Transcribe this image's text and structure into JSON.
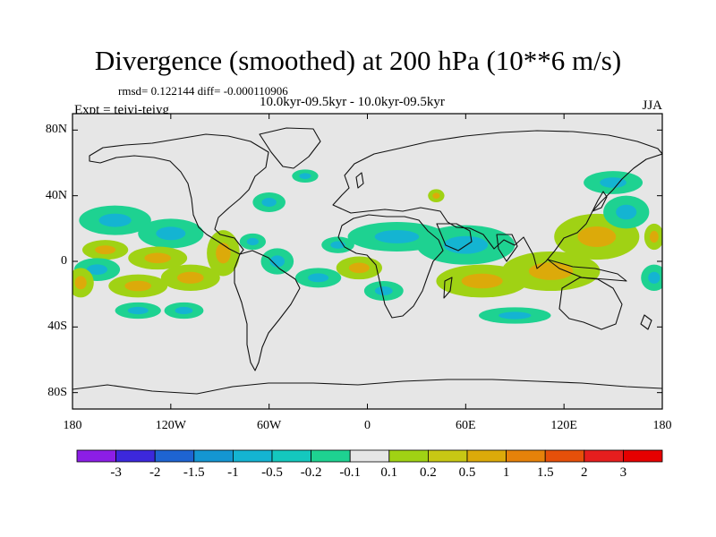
{
  "title": "Divergence (smoothed) at 200 hPa (10**6 m/s)",
  "stats": "rmsd= 0.122144 diff= -0.000110906",
  "subtitle": "10.0kyr-09.5kyr - 10.0kyr-09.5kyr",
  "expt": "Expt = tejyi-tejyg",
  "season": "JJA",
  "map": {
    "lon_range": [
      -180,
      180
    ],
    "lat_range": [
      -90,
      90
    ],
    "background_color": "#e6e6e6",
    "lat_labels": [
      {
        "text": "80N",
        "lat": 80
      },
      {
        "text": "40N",
        "lat": 40
      },
      {
        "text": "0",
        "lat": 0
      },
      {
        "text": "40S",
        "lat": -40
      },
      {
        "text": "80S",
        "lat": -80
      }
    ],
    "lon_labels": [
      {
        "text": "180",
        "lon": -180
      },
      {
        "text": "120W",
        "lon": -120
      },
      {
        "text": "60W",
        "lon": -60
      },
      {
        "text": "0",
        "lon": 0
      },
      {
        "text": "60E",
        "lon": 60
      },
      {
        "text": "120E",
        "lon": 120
      },
      {
        "text": "180",
        "lon": 180
      }
    ]
  },
  "colorbar": {
    "colors": [
      "#8c1ee6",
      "#3c28dc",
      "#1e64d2",
      "#1496d2",
      "#14b4d2",
      "#14c8be",
      "#1ed291",
      "#e6e6e6",
      "#a0d214",
      "#c8c814",
      "#dcaa0a",
      "#e6820a",
      "#e6500a",
      "#e61e1e",
      "#e60000"
    ],
    "labels": [
      "-3",
      "-2",
      "-1.5",
      "-1",
      "-0.5",
      "-0.2",
      "-0.1",
      "0.1",
      "0.2",
      "0.5",
      "1",
      "1.5",
      "2",
      "3"
    ]
  },
  "anomalies": [
    {
      "lon": -154,
      "lat": 25,
      "rlon": 22,
      "rlat": 9,
      "level": "neg"
    },
    {
      "lon": -120,
      "lat": 17,
      "rlon": 20,
      "rlat": 9,
      "level": "neg"
    },
    {
      "lon": -160,
      "lat": 7,
      "rlon": 14,
      "rlat": 6,
      "level": "pos"
    },
    {
      "lon": -128,
      "lat": 2,
      "rlon": 18,
      "rlat": 7,
      "level": "pos"
    },
    {
      "lon": -165,
      "lat": -5,
      "rlon": 14,
      "rlat": 7,
      "level": "neg"
    },
    {
      "lon": -108,
      "lat": -10,
      "rlon": 18,
      "rlat": 8,
      "level": "pos"
    },
    {
      "lon": -140,
      "lat": -15,
      "rlon": 18,
      "rlat": 7,
      "level": "pos"
    },
    {
      "lon": -175,
      "lat": -13,
      "rlon": 8,
      "rlat": 9,
      "level": "pos"
    },
    {
      "lon": -88,
      "lat": 5,
      "rlon": 10,
      "rlat": 14,
      "level": "pos"
    },
    {
      "lon": -70,
      "lat": 12,
      "rlon": 8,
      "rlat": 5,
      "level": "neg"
    },
    {
      "lon": -55,
      "lat": 0,
      "rlon": 10,
      "rlat": 8,
      "level": "neg"
    },
    {
      "lon": -140,
      "lat": -30,
      "rlon": 14,
      "rlat": 5,
      "level": "neg"
    },
    {
      "lon": -112,
      "lat": -30,
      "rlon": 12,
      "rlat": 5,
      "level": "neg"
    },
    {
      "lon": -60,
      "lat": 36,
      "rlon": 10,
      "rlat": 6,
      "level": "neg"
    },
    {
      "lon": -38,
      "lat": 52,
      "rlon": 8,
      "rlat": 4,
      "level": "neg"
    },
    {
      "lon": -18,
      "lat": 10,
      "rlon": 10,
      "rlat": 5,
      "level": "neg"
    },
    {
      "lon": -30,
      "lat": -10,
      "rlon": 14,
      "rlat": 6,
      "level": "neg"
    },
    {
      "lon": -5,
      "lat": -4,
      "rlon": 14,
      "rlat": 7,
      "level": "pos"
    },
    {
      "lon": 18,
      "lat": 15,
      "rlon": 30,
      "rlat": 9,
      "level": "neg"
    },
    {
      "lon": 10,
      "lat": -18,
      "rlon": 12,
      "rlat": 6,
      "level": "neg"
    },
    {
      "lon": 42,
      "lat": 40,
      "rlon": 5,
      "rlat": 4,
      "level": "pos"
    },
    {
      "lon": 60,
      "lat": 10,
      "rlon": 30,
      "rlat": 12,
      "level": "neg"
    },
    {
      "lon": 70,
      "lat": -12,
      "rlon": 28,
      "rlat": 10,
      "level": "pos"
    },
    {
      "lon": 112,
      "lat": -6,
      "rlon": 30,
      "rlat": 12,
      "level": "pos"
    },
    {
      "lon": 140,
      "lat": 15,
      "rlon": 26,
      "rlat": 14,
      "level": "pos"
    },
    {
      "lon": 158,
      "lat": 30,
      "rlon": 14,
      "rlat": 10,
      "level": "neg"
    },
    {
      "lon": 150,
      "lat": 48,
      "rlon": 18,
      "rlat": 7,
      "level": "neg"
    },
    {
      "lon": 90,
      "lat": -33,
      "rlon": 22,
      "rlat": 5,
      "level": "neg"
    },
    {
      "lon": 175,
      "lat": 15,
      "rlon": 6,
      "rlat": 8,
      "level": "pos"
    },
    {
      "lon": 175,
      "lat": -10,
      "rlon": 8,
      "rlat": 8,
      "level": "neg"
    }
  ]
}
